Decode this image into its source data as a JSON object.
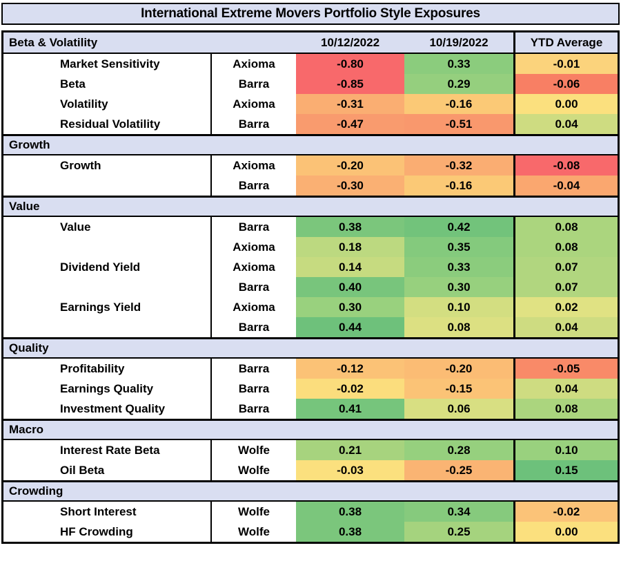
{
  "chart_data": {
    "type": "heatmap",
    "title": "International Extreme Movers Portfolio Style Exposures",
    "columns": [
      "10/12/2022",
      "10/19/2022",
      "YTD Average"
    ],
    "value_format": "two_decimals",
    "colors": {
      "header_bg": "#D9DEF1",
      "border": "#000000",
      "text": "#000000",
      "scale_negative": "#F8696B",
      "scale_mid": "#FFEB84",
      "scale_positive": "#63BE7B"
    },
    "sections": [
      {
        "name": "Beta & Volatility",
        "show_column_headers": true,
        "rows": [
          {
            "factor": "Market Sensitivity",
            "provider": "Axioma",
            "values": [
              -0.8,
              0.33,
              -0.01
            ],
            "cell_colors": [
              "#F8696B",
              "#8BCC7D",
              "#FBD37C"
            ]
          },
          {
            "factor": "Beta",
            "provider": "Barra",
            "values": [
              -0.85,
              0.29,
              -0.06
            ],
            "cell_colors": [
              "#F8696B",
              "#95CF7E",
              "#F87F64"
            ]
          },
          {
            "factor": "Volatility",
            "provider": "Axioma",
            "values": [
              -0.31,
              -0.16,
              0.0
            ],
            "cell_colors": [
              "#FAAE72",
              "#FBC976",
              "#FBE07E"
            ]
          },
          {
            "factor": "Residual Volatility",
            "provider": "Barra",
            "values": [
              -0.47,
              -0.51,
              0.04
            ],
            "cell_colors": [
              "#F99B6E",
              "#F9986D",
              "#CEDC81"
            ]
          }
        ]
      },
      {
        "name": "Growth",
        "show_column_headers": false,
        "rows": [
          {
            "factor": "Growth",
            "provider": "Axioma",
            "values": [
              -0.2,
              -0.32,
              -0.08
            ],
            "cell_colors": [
              "#FBC276",
              "#FAAD72",
              "#F8696B"
            ]
          },
          {
            "factor": "",
            "provider": "Barra",
            "values": [
              -0.3,
              -0.16,
              -0.04
            ],
            "cell_colors": [
              "#FAB073",
              "#FBC976",
              "#FAA76F"
            ]
          }
        ]
      },
      {
        "name": "Value",
        "show_column_headers": false,
        "rows": [
          {
            "factor": "Value",
            "provider": "Barra",
            "values": [
              0.38,
              0.42,
              0.08
            ],
            "cell_colors": [
              "#7BC67C",
              "#72C37B",
              "#ABD57E"
            ]
          },
          {
            "factor": "",
            "provider": "Axioma",
            "values": [
              0.18,
              0.35,
              0.08
            ],
            "cell_colors": [
              "#BCD980",
              "#84CA7D",
              "#ABD57E"
            ]
          },
          {
            "factor": "Dividend Yield",
            "provider": "Axioma",
            "values": [
              0.14,
              0.33,
              0.07
            ],
            "cell_colors": [
              "#C6DB80",
              "#8BCC7D",
              "#B1D67F"
            ]
          },
          {
            "factor": "",
            "provider": "Barra",
            "values": [
              0.4,
              0.3,
              0.07
            ],
            "cell_colors": [
              "#78C57C",
              "#97D07E",
              "#B1D67F"
            ]
          },
          {
            "factor": "Earnings Yield",
            "provider": "Axioma",
            "values": [
              0.3,
              0.1,
              0.02
            ],
            "cell_colors": [
              "#99D17E",
              "#D3DE81",
              "#E0E283"
            ]
          },
          {
            "factor": "",
            "provider": "Barra",
            "values": [
              0.44,
              0.08,
              0.04
            ],
            "cell_colors": [
              "#6EC17B",
              "#DCE082",
              "#CEDC81"
            ]
          }
        ]
      },
      {
        "name": "Quality",
        "show_column_headers": false,
        "rows": [
          {
            "factor": "Profitability",
            "provider": "Barra",
            "values": [
              -0.12,
              -0.2,
              -0.05
            ],
            "cell_colors": [
              "#FBC276",
              "#FBBC74",
              "#F98A68"
            ]
          },
          {
            "factor": "Earnings Quality",
            "provider": "Barra",
            "values": [
              -0.02,
              -0.15,
              0.04
            ],
            "cell_colors": [
              "#FBDD7D",
              "#FBC376",
              "#CEDC81"
            ]
          },
          {
            "factor": "Investment Quality",
            "provider": "Barra",
            "values": [
              0.41,
              0.06,
              0.08
            ],
            "cell_colors": [
              "#76C57C",
              "#D8DF82",
              "#ABD57E"
            ]
          }
        ]
      },
      {
        "name": "Macro",
        "show_column_headers": false,
        "rows": [
          {
            "factor": "Interest Rate Beta",
            "provider": "Wolfe",
            "values": [
              0.21,
              0.28,
              0.1
            ],
            "cell_colors": [
              "#A7D37E",
              "#96D07E",
              "#99D17E"
            ]
          },
          {
            "factor": "Oil Beta",
            "provider": "Wolfe",
            "values": [
              -0.03,
              -0.25,
              0.15
            ],
            "cell_colors": [
              "#FBE07E",
              "#FAB473",
              "#6DC17B"
            ]
          }
        ]
      },
      {
        "name": "Crowding",
        "show_column_headers": false,
        "rows": [
          {
            "factor": "Short Interest",
            "provider": "Wolfe",
            "values": [
              0.38,
              0.34,
              -0.02
            ],
            "cell_colors": [
              "#7BC67C",
              "#86CA7D",
              "#FBC378"
            ]
          },
          {
            "factor": "HF Crowding",
            "provider": "Wolfe",
            "values": [
              0.38,
              0.25,
              0.0
            ],
            "cell_colors": [
              "#7BC67C",
              "#A5D37E",
              "#FBE07E"
            ]
          }
        ]
      }
    ]
  }
}
